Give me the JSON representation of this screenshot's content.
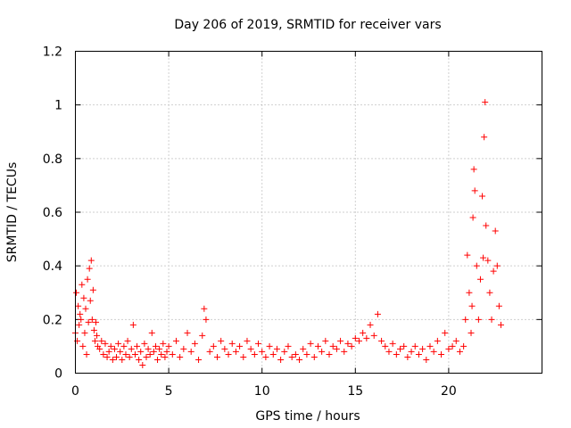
{
  "chart_data": {
    "type": "scatter",
    "title": "Day 206 of 2019, SRMTID for receiver vars",
    "xlabel": "GPS time / hours",
    "ylabel": "SRMTID / TECUs",
    "xlim": [
      0,
      25
    ],
    "ylim": [
      0,
      1.2
    ],
    "xticks": [
      0,
      5,
      10,
      15,
      20
    ],
    "xtick_labels": [
      "0",
      "5",
      "10",
      "15",
      "20"
    ],
    "yticks": [
      0,
      0.2,
      0.4,
      0.6,
      0.8,
      1,
      1.2
    ],
    "ytick_labels": [
      "0",
      "0.2",
      "0.4",
      "0.6",
      "0.8",
      "1",
      "1.2"
    ],
    "grid": true,
    "legend": "none",
    "marker": "+",
    "series": [
      {
        "name": "SRMTID",
        "color": "#ff0000",
        "x": [
          0.0,
          0.05,
          0.1,
          0.15,
          0.2,
          0.25,
          0.3,
          0.35,
          0.4,
          0.45,
          0.5,
          0.55,
          0.6,
          0.65,
          0.7,
          0.75,
          0.8,
          0.85,
          0.9,
          0.95,
          1.0,
          1.05,
          1.1,
          1.15,
          1.2,
          1.3,
          1.4,
          1.5,
          1.6,
          1.7,
          1.8,
          1.9,
          2.0,
          2.1,
          2.2,
          2.3,
          2.4,
          2.5,
          2.6,
          2.7,
          2.8,
          2.9,
          3.0,
          3.1,
          3.2,
          3.3,
          3.4,
          3.5,
          3.6,
          3.7,
          3.8,
          3.9,
          4.0,
          4.1,
          4.2,
          4.3,
          4.4,
          4.5,
          4.6,
          4.7,
          4.8,
          4.9,
          5.0,
          5.2,
          5.4,
          5.6,
          5.8,
          6.0,
          6.2,
          6.4,
          6.6,
          6.8,
          6.9,
          7.0,
          7.2,
          7.4,
          7.6,
          7.8,
          8.0,
          8.2,
          8.4,
          8.6,
          8.8,
          9.0,
          9.2,
          9.4,
          9.6,
          9.8,
          10.0,
          10.2,
          10.4,
          10.6,
          10.8,
          11.0,
          11.2,
          11.4,
          11.6,
          11.8,
          12.0,
          12.2,
          12.4,
          12.6,
          12.8,
          13.0,
          13.2,
          13.4,
          13.6,
          13.8,
          14.0,
          14.2,
          14.4,
          14.6,
          14.8,
          15.0,
          15.2,
          15.4,
          15.6,
          15.8,
          16.0,
          16.2,
          16.4,
          16.6,
          16.8,
          17.0,
          17.2,
          17.4,
          17.6,
          17.8,
          18.0,
          18.2,
          18.4,
          18.6,
          18.8,
          19.0,
          19.2,
          19.4,
          19.6,
          19.8,
          20.0,
          20.2,
          20.4,
          20.6,
          20.8,
          20.9,
          21.0,
          21.1,
          21.2,
          21.25,
          21.3,
          21.35,
          21.4,
          21.5,
          21.6,
          21.7,
          21.8,
          21.85,
          21.9,
          21.95,
          22.0,
          22.1,
          22.2,
          22.3,
          22.4,
          22.5,
          22.6,
          22.7,
          22.8
        ],
        "y": [
          0.15,
          0.3,
          0.12,
          0.25,
          0.18,
          0.22,
          0.2,
          0.33,
          0.1,
          0.28,
          0.15,
          0.24,
          0.07,
          0.35,
          0.19,
          0.39,
          0.27,
          0.42,
          0.2,
          0.31,
          0.16,
          0.12,
          0.19,
          0.14,
          0.1,
          0.09,
          0.12,
          0.07,
          0.11,
          0.06,
          0.08,
          0.1,
          0.05,
          0.09,
          0.06,
          0.11,
          0.08,
          0.05,
          0.1,
          0.07,
          0.12,
          0.06,
          0.09,
          0.18,
          0.07,
          0.1,
          0.05,
          0.08,
          0.03,
          0.11,
          0.06,
          0.09,
          0.07,
          0.15,
          0.08,
          0.1,
          0.05,
          0.09,
          0.07,
          0.11,
          0.06,
          0.08,
          0.1,
          0.07,
          0.12,
          0.06,
          0.09,
          0.15,
          0.08,
          0.11,
          0.05,
          0.14,
          0.24,
          0.2,
          0.08,
          0.1,
          0.06,
          0.12,
          0.09,
          0.07,
          0.11,
          0.08,
          0.1,
          0.06,
          0.12,
          0.09,
          0.07,
          0.11,
          0.08,
          0.06,
          0.1,
          0.07,
          0.09,
          0.05,
          0.08,
          0.1,
          0.06,
          0.07,
          0.05,
          0.09,
          0.07,
          0.11,
          0.06,
          0.1,
          0.08,
          0.12,
          0.07,
          0.1,
          0.09,
          0.12,
          0.08,
          0.11,
          0.1,
          0.13,
          0.12,
          0.15,
          0.13,
          0.18,
          0.14,
          0.22,
          0.12,
          0.1,
          0.08,
          0.11,
          0.07,
          0.09,
          0.1,
          0.06,
          0.08,
          0.1,
          0.07,
          0.09,
          0.05,
          0.1,
          0.08,
          0.12,
          0.07,
          0.15,
          0.09,
          0.1,
          0.12,
          0.08,
          0.1,
          0.2,
          0.44,
          0.3,
          0.15,
          0.25,
          0.58,
          0.76,
          0.68,
          0.4,
          0.2,
          0.35,
          0.66,
          0.43,
          0.88,
          1.01,
          0.55,
          0.42,
          0.3,
          0.2,
          0.38,
          0.53,
          0.4,
          0.25,
          0.18
        ]
      }
    ]
  }
}
